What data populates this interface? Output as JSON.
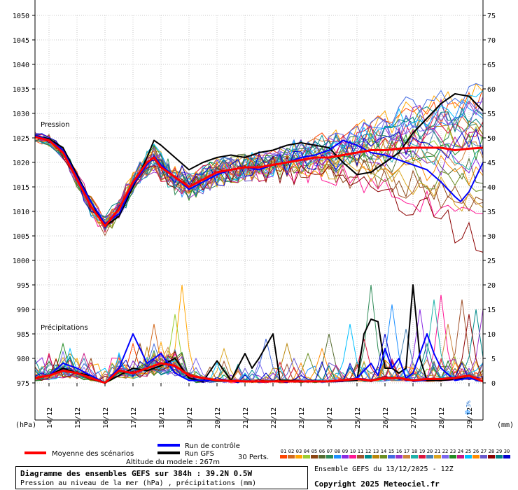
{
  "chart_data": {
    "type": "line",
    "y_left_label": "(hPa)",
    "y_right_label": "(mm)",
    "pressure_label": "Pression",
    "precip_label": "Précipitations",
    "pressure_ticks": [
      975,
      980,
      985,
      990,
      995,
      1000,
      1005,
      1010,
      1015,
      1020,
      1025,
      1030,
      1035,
      1040,
      1045,
      1050
    ],
    "precip_ticks": [
      0,
      5,
      10,
      15,
      20,
      25,
      30,
      35,
      40,
      45,
      50,
      55,
      60,
      65,
      70,
      75
    ],
    "ylim_pressure": [
      975,
      1050
    ],
    "ylim_precip": [
      0,
      75
    ],
    "x_start_day": 13.5,
    "x_end_day": 29.5,
    "date_ticks": [
      "14/12",
      "15/12",
      "16/12",
      "17/12",
      "18/12",
      "19/12",
      "20/12",
      "21/12",
      "22/12",
      "23/12",
      "24/12",
      "25/12",
      "26/12",
      "27/12",
      "28/12",
      "29/12"
    ],
    "grid": true,
    "snow_marker": {
      "label": "3%",
      "day": 29.0
    },
    "mean_pressure": [
      [
        13.5,
        1025.2
      ],
      [
        14,
        1024.5
      ],
      [
        14.5,
        1022
      ],
      [
        15,
        1016.5
      ],
      [
        15.5,
        1011
      ],
      [
        16,
        1007
      ],
      [
        16.5,
        1010.5
      ],
      [
        17,
        1016
      ],
      [
        17.5,
        1020
      ],
      [
        17.75,
        1021
      ],
      [
        18,
        1019
      ],
      [
        18.5,
        1017
      ],
      [
        19,
        1015
      ],
      [
        19.5,
        1016.5
      ],
      [
        20,
        1018
      ],
      [
        20.5,
        1018.5
      ],
      [
        21,
        1019
      ],
      [
        21.5,
        1019
      ],
      [
        22,
        1019.5
      ],
      [
        22.5,
        1020
      ],
      [
        23,
        1020.5
      ],
      [
        23.5,
        1021
      ],
      [
        24,
        1021
      ],
      [
        24.5,
        1021.5
      ],
      [
        25,
        1022
      ],
      [
        25.5,
        1022.5
      ],
      [
        26,
        1022.5
      ],
      [
        26.5,
        1022.8
      ],
      [
        27,
        1023
      ],
      [
        27.5,
        1023
      ],
      [
        28,
        1023
      ],
      [
        28.5,
        1022.5
      ],
      [
        29,
        1022.8
      ],
      [
        29.5,
        1023
      ]
    ],
    "control_pressure": [
      [
        13.5,
        1025.5
      ],
      [
        14,
        1024.6
      ],
      [
        14.5,
        1022.5
      ],
      [
        15,
        1017
      ],
      [
        15.5,
        1012
      ],
      [
        16,
        1007.5
      ],
      [
        16.5,
        1009.5
      ],
      [
        17,
        1015.5
      ],
      [
        17.5,
        1019.5
      ],
      [
        17.75,
        1021.3
      ],
      [
        18,
        1019.5
      ],
      [
        18.5,
        1017
      ],
      [
        19,
        1014.5
      ],
      [
        19.5,
        1016
      ],
      [
        20,
        1017.5
      ],
      [
        20.5,
        1018.5
      ],
      [
        21,
        1019
      ],
      [
        21.5,
        1018.5
      ],
      [
        22,
        1019.5
      ],
      [
        22.5,
        1020
      ],
      [
        23,
        1021
      ],
      [
        23.5,
        1021.5
      ],
      [
        24,
        1022.5
      ],
      [
        24.5,
        1024.5
      ],
      [
        25,
        1023.5
      ],
      [
        25.5,
        1022
      ],
      [
        26,
        1021.5
      ],
      [
        26.5,
        1020.5
      ],
      [
        27,
        1019.5
      ],
      [
        27.5,
        1018.5
      ],
      [
        28,
        1016
      ],
      [
        28.5,
        1013
      ],
      [
        28.7,
        1012
      ],
      [
        29,
        1014
      ],
      [
        29.5,
        1020
      ]
    ],
    "gfs_pressure": [
      [
        13.5,
        1025.5
      ],
      [
        14,
        1024.8
      ],
      [
        14.5,
        1023
      ],
      [
        15,
        1017.5
      ],
      [
        15.5,
        1012
      ],
      [
        16,
        1007
      ],
      [
        16.5,
        1009
      ],
      [
        17,
        1015
      ],
      [
        17.5,
        1021
      ],
      [
        17.75,
        1024.5
      ],
      [
        18,
        1023.5
      ],
      [
        18.5,
        1021
      ],
      [
        19,
        1018.5
      ],
      [
        19.5,
        1020
      ],
      [
        20,
        1021
      ],
      [
        20.5,
        1021.5
      ],
      [
        21,
        1021
      ],
      [
        21.5,
        1022
      ],
      [
        22,
        1022.5
      ],
      [
        22.5,
        1023.5
      ],
      [
        23,
        1024
      ],
      [
        23.5,
        1023.5
      ],
      [
        24,
        1023
      ],
      [
        24.5,
        1020
      ],
      [
        25,
        1017.5
      ],
      [
        25.5,
        1018
      ],
      [
        26,
        1020
      ],
      [
        26.5,
        1022
      ],
      [
        27,
        1026
      ],
      [
        27.5,
        1029
      ],
      [
        28,
        1032
      ],
      [
        28.5,
        1034
      ],
      [
        29,
        1033.5
      ],
      [
        29.5,
        1030.5
      ]
    ],
    "mean_precip": [
      [
        13.5,
        1
      ],
      [
        14,
        1.5
      ],
      [
        14.5,
        2.5
      ],
      [
        15,
        2
      ],
      [
        15.5,
        1
      ],
      [
        16,
        0
      ],
      [
        16.5,
        2.5
      ],
      [
        17,
        2
      ],
      [
        17.5,
        3
      ],
      [
        18,
        4
      ],
      [
        18.5,
        3.5
      ],
      [
        19,
        1.5
      ],
      [
        19.5,
        1
      ],
      [
        20,
        0.5
      ],
      [
        21,
        0.3
      ],
      [
        22,
        0.3
      ],
      [
        23,
        0.3
      ],
      [
        24,
        0.3
      ],
      [
        25,
        0.8
      ],
      [
        25.5,
        0.5
      ],
      [
        26,
        1
      ],
      [
        26.5,
        1
      ],
      [
        27,
        0.5
      ],
      [
        27.5,
        0.8
      ],
      [
        28,
        0.8
      ],
      [
        28.5,
        1
      ],
      [
        29,
        1.5
      ],
      [
        29.5,
        0.3
      ]
    ],
    "control_precip": [
      [
        13.5,
        1
      ],
      [
        14,
        1.5
      ],
      [
        14.5,
        4
      ],
      [
        15,
        3
      ],
      [
        15.5,
        1.5
      ],
      [
        16,
        0
      ],
      [
        16.5,
        3
      ],
      [
        17,
        10
      ],
      [
        17.5,
        4
      ],
      [
        18,
        6
      ],
      [
        18.5,
        2
      ],
      [
        19,
        0.5
      ],
      [
        19.5,
        0.5
      ],
      [
        20,
        0.5
      ],
      [
        21,
        0.3
      ],
      [
        22,
        0.3
      ],
      [
        23,
        0.3
      ],
      [
        24,
        0.3
      ],
      [
        24.5,
        0.5
      ],
      [
        25,
        1
      ],
      [
        25.5,
        4
      ],
      [
        25.75,
        1.5
      ],
      [
        26,
        7
      ],
      [
        26.25,
        3
      ],
      [
        26.5,
        5
      ],
      [
        26.75,
        1
      ],
      [
        27,
        2
      ],
      [
        27.5,
        10
      ],
      [
        27.75,
        6
      ],
      [
        28,
        3
      ],
      [
        28.5,
        0.5
      ],
      [
        29,
        1
      ],
      [
        29.5,
        0.3
      ]
    ],
    "gfs_precip": [
      [
        13.5,
        1
      ],
      [
        14,
        1.5
      ],
      [
        14.5,
        3
      ],
      [
        15,
        2
      ],
      [
        15.5,
        1.5
      ],
      [
        16,
        0
      ],
      [
        16.5,
        1.5
      ],
      [
        17,
        3
      ],
      [
        17.5,
        2.5
      ],
      [
        18,
        3.5
      ],
      [
        18.5,
        5
      ],
      [
        19,
        1
      ],
      [
        19.5,
        0.3
      ],
      [
        20,
        4.5
      ],
      [
        20.5,
        0.5
      ],
      [
        21,
        6
      ],
      [
        21.25,
        3
      ],
      [
        21.5,
        5
      ],
      [
        22,
        10
      ],
      [
        22.25,
        0.5
      ],
      [
        22.5,
        0.5
      ],
      [
        23,
        0.3
      ],
      [
        24,
        0.3
      ],
      [
        25,
        0.5
      ],
      [
        25.25,
        10
      ],
      [
        25.5,
        13
      ],
      [
        25.75,
        12.5
      ],
      [
        26,
        3
      ],
      [
        26.25,
        3
      ],
      [
        26.5,
        2
      ],
      [
        26.75,
        3
      ],
      [
        27,
        20
      ],
      [
        27.25,
        5
      ],
      [
        27.5,
        0.5
      ],
      [
        28,
        0.5
      ],
      [
        29,
        1
      ],
      [
        29.5,
        0.3
      ]
    ],
    "perturbations": {
      "count": 30,
      "color_legend_labels": [
        "01",
        "02",
        "03",
        "04",
        "05",
        "06",
        "07",
        "08",
        "09",
        "10",
        "11",
        "12",
        "13",
        "14",
        "15",
        "16",
        "17",
        "18",
        "19",
        "20",
        "21",
        "22",
        "23",
        "24",
        "25",
        "26",
        "27",
        "28",
        "29",
        "30"
      ],
      "colors": [
        "#ff4500",
        "#d2691e",
        "#ffa500",
        "#9acd32",
        "#8b4513",
        "#556b2f",
        "#2e8b57",
        "#1e90ff",
        "#8a2be2",
        "#ff1493",
        "#a0522d",
        "#008b8b",
        "#b8860b",
        "#6b8e23",
        "#4169e1",
        "#9932cc",
        "#cd853f",
        "#20b2aa",
        "#dc143c",
        "#4682b4",
        "#daa520",
        "#7b68ee",
        "#228b22",
        "#c71585",
        "#00bfff",
        "#ff8c00",
        "#6a5acd",
        "#8b0000",
        "#008080",
        "#0000cd"
      ],
      "end_pressures": [
        1033,
        1029,
        1035,
        1025,
        1011,
        1018,
        1027,
        1031,
        1019,
        1007,
        1010,
        1031,
        1026,
        1015,
        1036,
        1032,
        1022,
        1021,
        1028,
        1024,
        1012,
        1030,
        1023,
        1026,
        1033,
        1017,
        1031,
        1004,
        1030,
        1024
      ],
      "precip_peaks": [
        [
          16.9,
          8
        ],
        [
          17.8,
          12
        ],
        [
          18.7,
          20
        ],
        [
          18.4,
          14
        ],
        [
          17.3,
          8
        ],
        [
          24,
          10
        ],
        [
          25.6,
          20
        ],
        [
          26.3,
          16
        ],
        [
          27.2,
          15
        ],
        [
          28,
          18
        ],
        [
          28.7,
          17
        ],
        [
          29.3,
          15
        ],
        [
          22.4,
          8
        ],
        [
          23.3,
          6
        ],
        [
          21.7,
          9
        ],
        [
          29.5,
          15
        ],
        [
          28.3,
          12
        ],
        [
          27.8,
          17
        ],
        [
          25.3,
          9
        ],
        [
          26.7,
          11
        ],
        [
          20.3,
          7
        ],
        [
          19.3,
          5
        ],
        [
          14.5,
          8
        ],
        [
          15.2,
          6
        ],
        [
          24.8,
          12
        ],
        [
          23.8,
          7
        ],
        [
          22.8,
          5
        ],
        [
          28.9,
          14
        ],
        [
          27.6,
          8
        ],
        [
          26,
          10
        ]
      ]
    }
  },
  "legend": {
    "mean": "Moyenne des scénarios",
    "control": "Run de contrôle",
    "gfs": "Run GFS",
    "perts": "30 Perts.",
    "altitude": "Altitude du modele : 267m",
    "mean_color": "#ff0000",
    "control_color": "#0000ff",
    "gfs_color": "#000000"
  },
  "footer": {
    "title": "Diagramme des ensembles GEFS sur 384h : 39.2N 0.5W",
    "subtitle": "Pression au niveau de la mer (hPa) , précipitations (mm)",
    "run_info": "Ensemble GEFS du 13/12/2025 - 12Z",
    "copyright": "Copyright 2025 Meteociel.fr"
  }
}
